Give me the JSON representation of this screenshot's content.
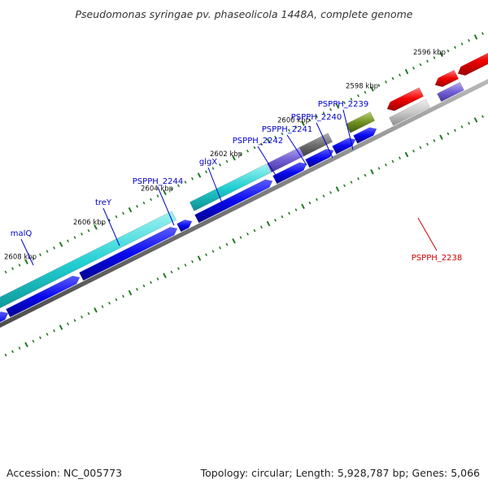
{
  "title": "Pseudomonas syringae pv. phaseolicola 1448A, complete genome",
  "footer": {
    "accession": "Accession: NC_005773",
    "summary": "Topology: circular; Length: 5,928,787 bp; Genes: 5,066"
  },
  "colors": {
    "background": "#ffffff",
    "backbone": "#888888",
    "tick": "#1f7a1f",
    "forward_label": "#0000cc",
    "reverse_label": "#cc0000"
  },
  "ruler_labels": [
    "2608 kbp",
    "2606 kbp",
    "2604 kbp",
    "2602 kbp",
    "2600 kbp",
    "2598 kbp",
    "2596 kbp"
  ],
  "gene_labels": [
    {
      "text": "malQ",
      "strand": "forward"
    },
    {
      "text": "treY",
      "strand": "forward"
    },
    {
      "text": "PSPPH_2244",
      "strand": "forward"
    },
    {
      "text": "glgX",
      "strand": "forward"
    },
    {
      "text": "PSPPH_2242",
      "strand": "forward"
    },
    {
      "text": "PSPPH_2241",
      "strand": "forward"
    },
    {
      "text": "PSPPH_2240",
      "strand": "forward"
    },
    {
      "text": "PSPPH_2239",
      "strand": "forward"
    },
    {
      "text": "PSPPH_2238",
      "strand": "reverse"
    }
  ]
}
